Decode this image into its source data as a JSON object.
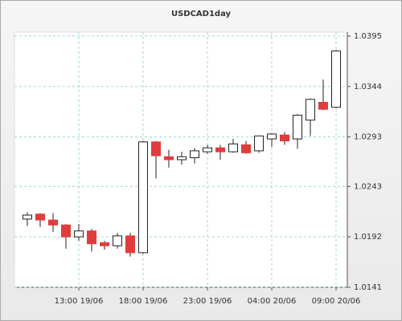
{
  "chart_data": {
    "type": "candlestick",
    "title": "USDCAD1day",
    "categories": [
      null,
      null,
      null,
      null,
      "13:00 19/06",
      null,
      null,
      null,
      null,
      "18:00 19/06",
      null,
      null,
      null,
      null,
      "23:00 19/06",
      null,
      null,
      null,
      null,
      "04:00 20/06",
      null,
      null,
      null,
      null,
      "09:00 20/06"
    ],
    "open": [
      1.021,
      1.0215,
      1.0209,
      1.0204,
      1.0192,
      1.0198,
      1.0186,
      1.0183,
      1.0193,
      1.0176,
      1.0288,
      1.0273,
      1.027,
      1.0272,
      1.0278,
      1.0282,
      1.0278,
      1.0285,
      1.0279,
      1.0291,
      1.0295,
      1.0291,
      1.031,
      1.0328,
      1.0323
    ],
    "high": [
      1.0217,
      1.0216,
      1.0216,
      1.0205,
      1.0205,
      1.02,
      1.0188,
      1.0196,
      1.0196,
      1.0289,
      1.0289,
      1.028,
      1.0278,
      1.0282,
      1.0285,
      1.0285,
      1.0291,
      1.0289,
      1.0294,
      1.0297,
      1.0298,
      1.0316,
      1.0332,
      1.0351,
      1.0381
    ],
    "low": [
      1.0203,
      1.0202,
      1.0197,
      1.018,
      1.0188,
      1.0177,
      1.0179,
      1.018,
      1.0172,
      1.0175,
      1.0251,
      1.0262,
      1.0265,
      1.0266,
      1.0276,
      1.027,
      1.0277,
      1.0276,
      1.0277,
      1.0283,
      1.0285,
      1.0281,
      1.0294,
      1.032,
      1.0322
    ],
    "close": [
      1.0214,
      1.0209,
      1.0204,
      1.0192,
      1.0198,
      1.0185,
      1.0183,
      1.0193,
      1.0176,
      1.0288,
      1.0274,
      1.027,
      1.0273,
      1.0279,
      1.0282,
      1.0278,
      1.0286,
      1.0277,
      1.0294,
      1.0296,
      1.0289,
      1.0315,
      1.0331,
      1.0321,
      1.038
    ],
    "up_color": "#ffffff",
    "down_color": "#e03c3c",
    "ylim": [
      1.0141,
      1.0399
    ],
    "yticks": [
      1.0141,
      1.0192,
      1.0243,
      1.0293,
      1.0344,
      1.0395
    ],
    "grid": true
  }
}
